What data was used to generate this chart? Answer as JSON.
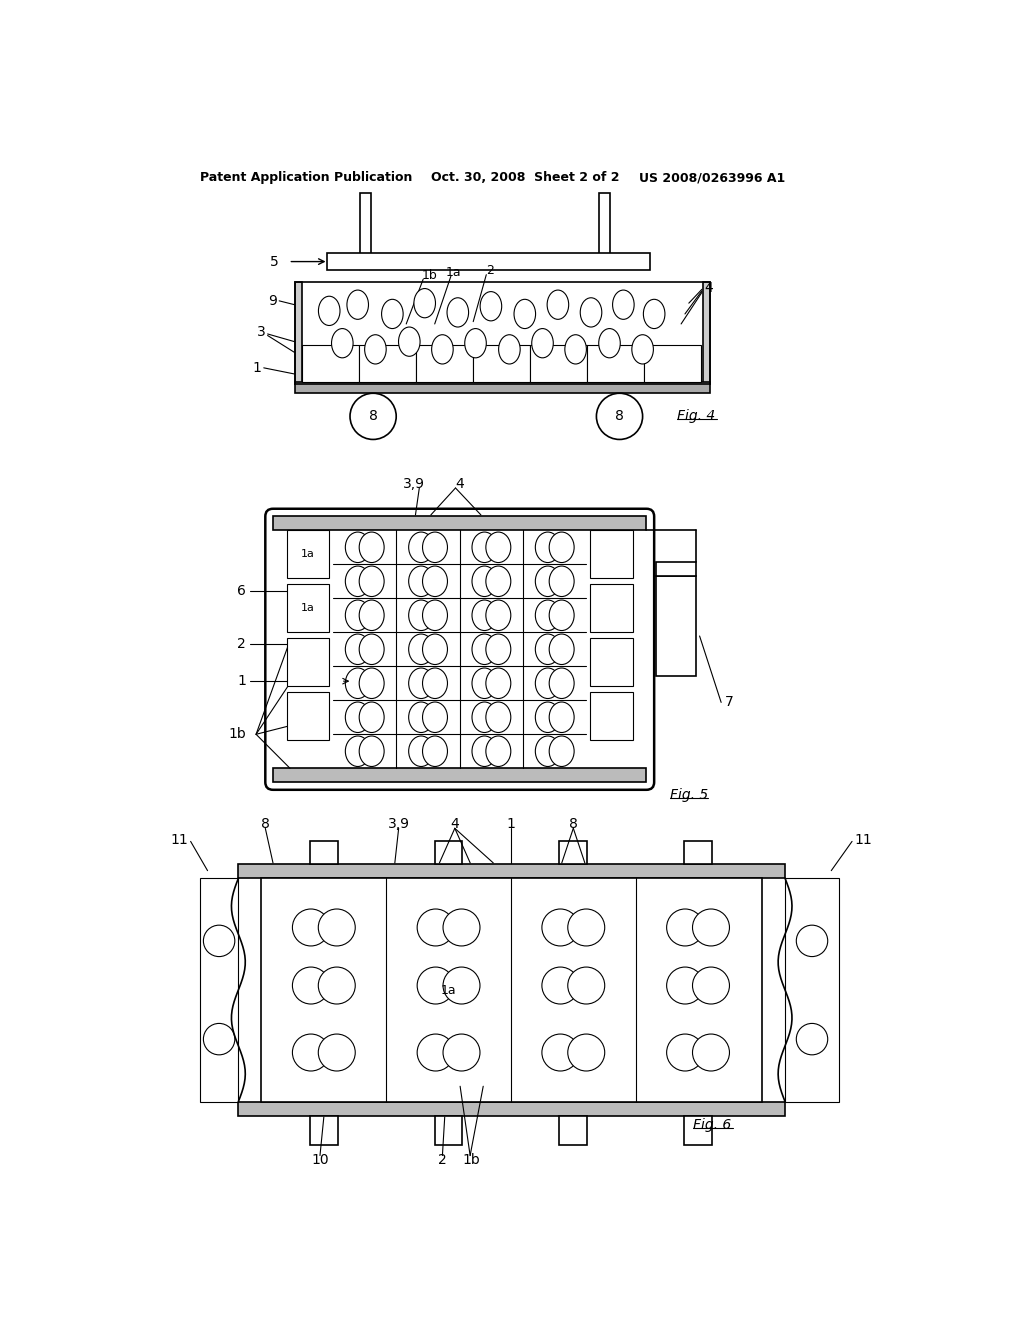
{
  "bg_color": "#ffffff",
  "header_left": "Patent Application Publication",
  "header_mid": "Oct. 30, 2008  Sheet 2 of 2",
  "header_right": "US 2008/0263996 A1",
  "fig4_label": "Fig. 4",
  "fig5_label": "Fig. 5",
  "fig6_label": "Fig. 6"
}
